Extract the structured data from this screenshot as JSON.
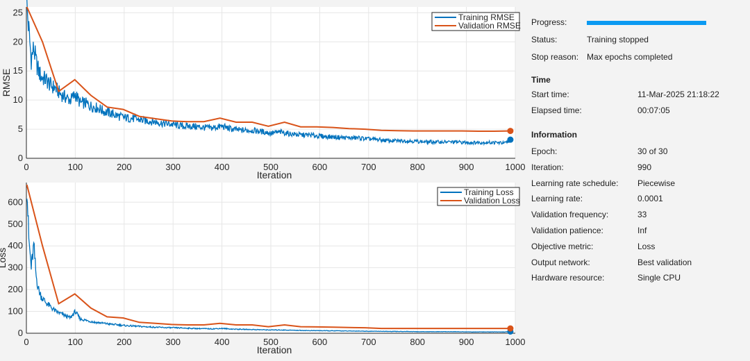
{
  "charts": [
    {
      "ylabel": "RMSE",
      "xlabel": "Iteration",
      "xlim": [
        0,
        1000
      ],
      "ylim": [
        0,
        26
      ],
      "xticks": [
        "0",
        "100",
        "200",
        "300",
        "400",
        "500",
        "600",
        "700",
        "800",
        "900",
        "1000"
      ],
      "yticks": [
        "0",
        "5",
        "10",
        "15",
        "20",
        "25"
      ],
      "legend": [
        "Training RMSE",
        "Validation RMSE"
      ]
    },
    {
      "ylabel": "Loss",
      "xlabel": "Iteration",
      "xlim": [
        0,
        1000
      ],
      "ylim": [
        0,
        690
      ],
      "xticks": [
        "0",
        "100",
        "200",
        "300",
        "400",
        "500",
        "600",
        "700",
        "800",
        "900",
        "1000"
      ],
      "yticks": [
        "0",
        "100",
        "200",
        "300",
        "400",
        "500",
        "600"
      ],
      "legend": [
        "Training Loss",
        "Validation Loss"
      ]
    }
  ],
  "chart_data": [
    {
      "type": "line",
      "ylabel": "RMSE",
      "xlabel": "Iteration",
      "xlim": [
        0,
        1000
      ],
      "ylim": [
        0,
        26
      ],
      "grid": true,
      "legend_position": "top-right",
      "series": [
        {
          "name": "Training RMSE",
          "color": "#0072BD",
          "x": [
            1,
            5,
            10,
            15,
            20,
            25,
            30,
            40,
            50,
            60,
            70,
            80,
            90,
            100,
            110,
            120,
            130,
            140,
            150,
            160,
            170,
            180,
            190,
            200,
            220,
            240,
            260,
            280,
            300,
            320,
            340,
            360,
            380,
            400,
            420,
            440,
            460,
            480,
            500,
            520,
            540,
            560,
            580,
            600,
            620,
            640,
            660,
            680,
            700,
            720,
            740,
            760,
            780,
            800,
            820,
            840,
            860,
            880,
            900,
            920,
            940,
            960,
            980,
            990
          ],
          "y": [
            26,
            22,
            17,
            19,
            16.5,
            15,
            14,
            13.5,
            12.5,
            12,
            11,
            10.5,
            10,
            11,
            9.5,
            9.5,
            9,
            8.8,
            8.5,
            8,
            7.8,
            7.5,
            7.2,
            7,
            6.8,
            6.5,
            6.3,
            6,
            5.8,
            5.5,
            5.5,
            5.3,
            5.2,
            5.5,
            5,
            4.8,
            4.8,
            4.6,
            4.3,
            4.5,
            4.2,
            4,
            4,
            3.8,
            3.7,
            3.6,
            3.5,
            3.5,
            3.3,
            3.2,
            3,
            3,
            3,
            2.9,
            2.8,
            2.8,
            2.8,
            2.8,
            2.7,
            2.7,
            2.7,
            2.7,
            2.6,
            3.2
          ],
          "end_marker": true
        },
        {
          "name": "Validation RMSE",
          "color": "#D95319",
          "x": [
            1,
            33,
            66,
            99,
            132,
            165,
            198,
            231,
            264,
            297,
            330,
            363,
            396,
            429,
            462,
            495,
            528,
            561,
            594,
            627,
            660,
            693,
            726,
            759,
            792,
            825,
            858,
            891,
            924,
            957,
            990
          ],
          "y": [
            26,
            20,
            11.5,
            13.5,
            10.8,
            8.8,
            8.4,
            7.2,
            6.8,
            6.4,
            6.3,
            6.3,
            6.9,
            6.2,
            6.2,
            5.5,
            6.2,
            5.4,
            5.4,
            5.3,
            5.1,
            5,
            4.8,
            4.75,
            4.7,
            4.7,
            4.7,
            4.7,
            4.65,
            4.65,
            4.7
          ],
          "end_marker": true
        }
      ]
    },
    {
      "type": "line",
      "ylabel": "Loss",
      "xlabel": "Iteration",
      "xlim": [
        0,
        1000
      ],
      "ylim": [
        0,
        690
      ],
      "grid": true,
      "legend_position": "top-right",
      "series": [
        {
          "name": "Training Loss",
          "color": "#0072BD",
          "x": [
            1,
            5,
            10,
            15,
            20,
            25,
            30,
            40,
            50,
            60,
            70,
            80,
            90,
            100,
            110,
            120,
            130,
            140,
            150,
            160,
            170,
            180,
            190,
            200,
            220,
            240,
            260,
            280,
            300,
            320,
            340,
            360,
            380,
            400,
            420,
            440,
            460,
            480,
            500,
            520,
            540,
            560,
            580,
            600,
            620,
            640,
            660,
            680,
            700,
            720,
            740,
            760,
            780,
            800,
            820,
            840,
            860,
            880,
            900,
            920,
            940,
            960,
            980,
            990
          ],
          "y": [
            680,
            430,
            300,
            400,
            260,
            200,
            170,
            140,
            120,
            100,
            90,
            80,
            70,
            100,
            65,
            60,
            55,
            50,
            48,
            45,
            42,
            40,
            38,
            35,
            33,
            30,
            28,
            26,
            25,
            24,
            22,
            21,
            20,
            22,
            19,
            18,
            17,
            16,
            15,
            15,
            14,
            13,
            12,
            12,
            11,
            11,
            10,
            10,
            9,
            9,
            8,
            8,
            8,
            7,
            7,
            7,
            7,
            7,
            6,
            6,
            6,
            6,
            6,
            8
          ],
          "end_marker": true
        },
        {
          "name": "Validation Loss",
          "color": "#D95319",
          "x": [
            1,
            33,
            66,
            99,
            132,
            165,
            198,
            231,
            264,
            297,
            330,
            363,
            396,
            429,
            462,
            495,
            528,
            561,
            594,
            627,
            660,
            693,
            726,
            759,
            792,
            825,
            858,
            891,
            924,
            957,
            990
          ],
          "y": [
            680,
            400,
            135,
            180,
            115,
            75,
            70,
            50,
            45,
            40,
            38,
            38,
            45,
            38,
            38,
            30,
            38,
            30,
            29,
            28,
            26,
            25,
            22,
            22,
            22,
            22,
            22,
            22,
            22,
            22,
            22
          ],
          "end_marker": true
        }
      ]
    }
  ],
  "info": {
    "progress_label": "Progress:",
    "progress_value": 1.0,
    "status_label": "Status:",
    "status_value": "Training stopped",
    "stop_reason_label": "Stop reason:",
    "stop_reason_value": "Max epochs completed",
    "time_header": "Time",
    "start_time_label": "Start time:",
    "start_time_value": "11-Mar-2025 21:18:22",
    "elapsed_time_label": "Elapsed time:",
    "elapsed_time_value": "00:07:05",
    "information_header": "Information",
    "rows": [
      {
        "label": "Epoch:",
        "value": "30 of 30"
      },
      {
        "label": "Iteration:",
        "value": "990"
      },
      {
        "label": "Learning rate schedule:",
        "value": "Piecewise"
      },
      {
        "label": "Learning rate:",
        "value": "0.0001"
      },
      {
        "label": "Validation frequency:",
        "value": "33"
      },
      {
        "label": "Validation patience:",
        "value": "Inf"
      },
      {
        "label": "Objective metric:",
        "value": "Loss"
      },
      {
        "label": "Output network:",
        "value": "Best validation"
      },
      {
        "label": "Hardware resource:",
        "value": "Single CPU"
      }
    ]
  }
}
